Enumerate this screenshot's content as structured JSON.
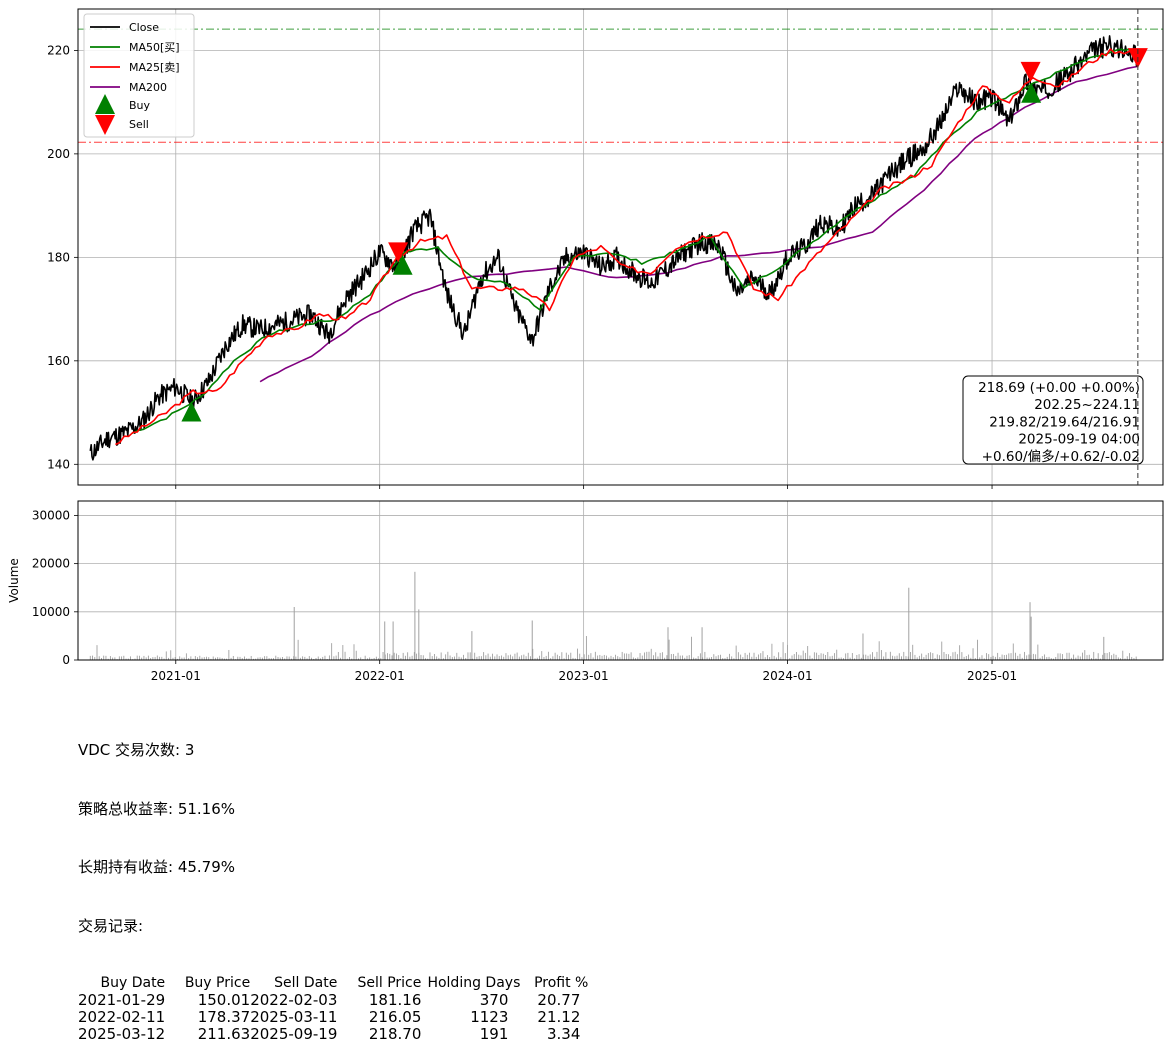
{
  "chart_data": [
    {
      "type": "line",
      "panel": "price",
      "x_ticks": [
        "2021-01",
        "2022-01",
        "2023-01",
        "2024-01",
        "2025-01"
      ],
      "y_ticks": [
        140,
        160,
        180,
        200,
        220
      ],
      "ylim": [
        136,
        228
      ],
      "xlim": [
        "2020-07-10",
        "2025-11-03"
      ],
      "grid": true,
      "legend_position": "top-left",
      "legend": [
        "Close",
        "MA50[买]",
        "MA25[卖]",
        "MA200",
        "Buy",
        "Sell"
      ],
      "colors": {
        "close": "#000000",
        "ma50": "#008000",
        "ma25": "#ff0000",
        "ma200": "#800080",
        "buy": "#008000",
        "sell": "#ff0000"
      },
      "series": [
        {
          "name": "Close",
          "x": [
            "2020-08-01",
            "2020-09-01",
            "2020-10-01",
            "2020-11-01",
            "2020-12-01",
            "2021-01-01",
            "2021-02-01",
            "2021-03-01",
            "2021-04-01",
            "2021-05-01",
            "2021-06-01",
            "2021-07-01",
            "2021-08-01",
            "2021-09-01",
            "2021-10-01",
            "2021-11-01",
            "2021-12-01",
            "2022-01-01",
            "2022-02-01",
            "2022-03-01",
            "2022-04-01",
            "2022-05-01",
            "2022-06-01",
            "2022-07-01",
            "2022-08-01",
            "2022-09-01",
            "2022-10-01",
            "2022-11-01",
            "2022-12-01",
            "2023-01-01",
            "2023-02-01",
            "2023-03-01",
            "2023-04-01",
            "2023-05-01",
            "2023-06-01",
            "2023-07-01",
            "2023-08-01",
            "2023-09-01",
            "2023-10-01",
            "2023-11-01",
            "2023-12-01",
            "2024-01-01",
            "2024-02-01",
            "2024-03-01",
            "2024-04-01",
            "2024-05-01",
            "2024-06-01",
            "2024-07-01",
            "2024-08-01",
            "2024-09-01",
            "2024-10-01",
            "2024-11-01",
            "2024-12-01",
            "2025-01-01",
            "2025-02-01",
            "2025-03-01",
            "2025-04-01",
            "2025-05-01",
            "2025-06-01",
            "2025-07-01",
            "2025-08-01",
            "2025-09-19"
          ],
          "y": [
            142,
            145,
            146,
            148,
            153,
            155,
            152,
            156,
            163,
            167,
            166,
            167,
            168,
            169,
            165,
            172,
            176,
            181,
            178,
            185,
            188,
            173,
            165,
            176,
            180,
            170,
            164,
            174,
            180,
            181,
            178,
            180,
            177,
            175,
            178,
            181,
            183,
            182,
            173,
            176,
            173,
            180,
            182,
            187,
            185,
            190,
            192,
            196,
            199,
            201,
            206,
            213,
            210,
            211,
            206,
            214,
            212,
            214,
            217,
            220,
            221,
            218.69
          ]
        },
        {
          "name": "MA25[卖]",
          "x": [
            "2020-09-15",
            "2020-11-01",
            "2020-12-15",
            "2021-02-01",
            "2021-03-15",
            "2021-05-01",
            "2021-06-15",
            "2021-08-01",
            "2021-09-15",
            "2021-11-01",
            "2021-12-15",
            "2022-02-01",
            "2022-03-15",
            "2022-05-01",
            "2022-06-15",
            "2022-08-01",
            "2022-09-15",
            "2022-11-01",
            "2022-12-15",
            "2023-02-01",
            "2023-03-15",
            "2023-05-01",
            "2023-06-15",
            "2023-08-01",
            "2023-09-15",
            "2023-11-01",
            "2023-12-15",
            "2024-02-01",
            "2024-03-15",
            "2024-05-01",
            "2024-06-15",
            "2024-08-01",
            "2024-09-15",
            "2024-11-01",
            "2024-12-15",
            "2025-02-01",
            "2025-03-15",
            "2025-05-01",
            "2025-06-15",
            "2025-08-01",
            "2025-09-19"
          ],
          "y": [
            144,
            147,
            150,
            154,
            154,
            160,
            165,
            166,
            169,
            168,
            172,
            180,
            183,
            184,
            174,
            174,
            174,
            170,
            180,
            182,
            178,
            177,
            182,
            184,
            185,
            174,
            172,
            178,
            183,
            188,
            193,
            195,
            198,
            206,
            213,
            210,
            215,
            213,
            217,
            220,
            219.64
          ]
        },
        {
          "name": "MA50[买]",
          "x": [
            "2020-10-15",
            "2020-12-15",
            "2021-02-15",
            "2021-04-15",
            "2021-06-15",
            "2021-08-15",
            "2021-10-15",
            "2021-12-15",
            "2022-02-15",
            "2022-04-15",
            "2022-06-15",
            "2022-08-15",
            "2022-10-15",
            "2022-12-15",
            "2023-02-15",
            "2023-04-15",
            "2023-06-15",
            "2023-08-15",
            "2023-10-15",
            "2023-12-15",
            "2024-02-15",
            "2024-04-15",
            "2024-06-15",
            "2024-08-15",
            "2024-10-15",
            "2024-12-15",
            "2025-02-15",
            "2025-04-15",
            "2025-06-15",
            "2025-08-15",
            "2025-09-19"
          ],
          "y": [
            146,
            149,
            153,
            160,
            165,
            167,
            168,
            173,
            181,
            182,
            176,
            175,
            170,
            180,
            181,
            179,
            181,
            184,
            174,
            178,
            183,
            188,
            192,
            196,
            203,
            209,
            212,
            215,
            218,
            220,
            219.82
          ]
        },
        {
          "name": "MA200",
          "x": [
            "2021-06-01",
            "2021-09-01",
            "2021-12-01",
            "2022-03-01",
            "2022-06-01",
            "2022-09-01",
            "2022-12-01",
            "2023-03-01",
            "2023-06-01",
            "2023-09-01",
            "2023-12-01",
            "2024-03-01",
            "2024-06-01",
            "2024-09-01",
            "2024-12-01",
            "2025-03-01",
            "2025-06-01",
            "2025-09-19"
          ],
          "y": [
            156,
            161,
            168,
            173,
            176,
            177,
            178,
            176,
            177,
            180,
            181,
            182,
            185,
            193,
            203,
            209,
            214,
            216.91
          ]
        }
      ],
      "buy_signals": [
        {
          "date": "2021-01-29",
          "price": 150.01
        },
        {
          "date": "2022-02-11",
          "price": 178.37
        },
        {
          "date": "2025-03-12",
          "price": 211.63
        }
      ],
      "sell_signals": [
        {
          "date": "2022-02-03",
          "price": 181.16
        },
        {
          "date": "2025-03-11",
          "price": 216.05
        },
        {
          "date": "2025-09-19",
          "price": 218.7
        }
      ],
      "hlines": [
        {
          "y": 224.11,
          "color": "#008000",
          "style": "dashdot"
        },
        {
          "y": 202.25,
          "color": "#ff0000",
          "style": "dashdot"
        }
      ],
      "vline": {
        "x": "2025-09-19",
        "color": "#333333",
        "style": "dashed"
      },
      "info_box": [
        "218.69 (+0.00 +0.00%)",
        "202.25~224.11",
        "219.82/219.64/216.91",
        "2025-09-19 04:00",
        "+0.60/偏多/+0.62/-0.02"
      ]
    },
    {
      "type": "bar",
      "panel": "volume",
      "ylabel": "Volume",
      "y_ticks": [
        "0",
        "10000",
        "20000",
        "30000"
      ],
      "ylim": [
        0,
        33000
      ],
      "x_ticks": [
        "2021-01",
        "2022-01",
        "2023-01",
        "2024-01",
        "2025-01"
      ],
      "grid": true,
      "bar_color": "#a0a0a0",
      "notable_spikes": [
        {
          "date": "2021-08-01",
          "value": 11000
        },
        {
          "date": "2022-01-10",
          "value": 8000
        },
        {
          "date": "2022-01-25",
          "value": 8000
        },
        {
          "date": "2022-03-05",
          "value": 18300
        },
        {
          "date": "2022-03-12",
          "value": 10500
        },
        {
          "date": "2022-06-15",
          "value": 6000
        },
        {
          "date": "2022-10-01",
          "value": 8200
        },
        {
          "date": "2023-06-01",
          "value": 6800
        },
        {
          "date": "2023-08-01",
          "value": 6800
        },
        {
          "date": "2024-05-15",
          "value": 5500
        },
        {
          "date": "2024-08-05",
          "value": 15000
        },
        {
          "date": "2025-03-10",
          "value": 12000
        },
        {
          "date": "2025-03-12",
          "value": 9000
        },
        {
          "date": "2025-07-20",
          "value": 4800
        }
      ]
    }
  ],
  "summary": {
    "trade_count": "VDC 交易次数: 3",
    "strategy_return": "策略总收益率: 51.16%",
    "hold_return": "长期持有收益: 45.79%",
    "records_title": "交易记录:",
    "columns": [
      "Buy Date",
      "Buy Price",
      "Sell Date",
      "Sell Price",
      "Holding Days",
      "Profit %"
    ],
    "rows": [
      [
        "2021-01-29",
        "150.01",
        "2022-02-03",
        "181.16",
        "370",
        "20.77"
      ],
      [
        "2022-02-11",
        "178.37",
        "2025-03-11",
        "216.05",
        "1123",
        "21.12"
      ],
      [
        "2025-03-12",
        "211.63",
        "2025-09-19",
        "218.70",
        "191",
        "3.34"
      ]
    ]
  }
}
